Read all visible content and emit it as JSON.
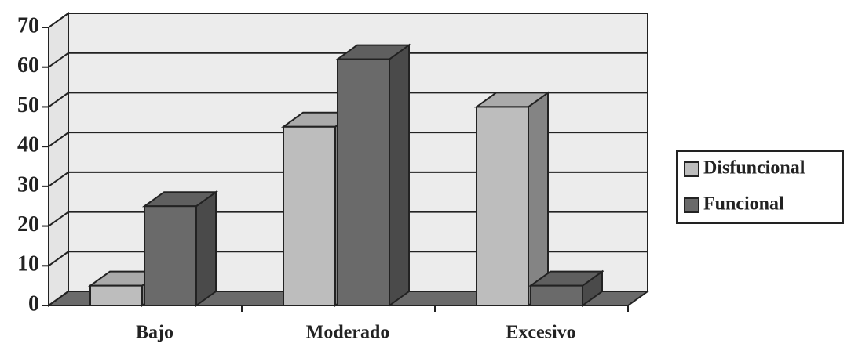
{
  "chart_data": {
    "type": "bar3d",
    "categories": [
      "Bajo",
      "Moderado",
      "Excesivo"
    ],
    "series": [
      {
        "name": "Disfuncional",
        "color": "#bdbdbd",
        "values": [
          5,
          45,
          50
        ]
      },
      {
        "name": "Funcional",
        "color": "#6a6a6a",
        "values": [
          25,
          62,
          5
        ]
      }
    ],
    "ylim": [
      0,
      70
    ],
    "yticks": [
      0,
      10,
      20,
      30,
      40,
      50,
      60,
      70
    ],
    "grid": true,
    "legend": "right"
  }
}
